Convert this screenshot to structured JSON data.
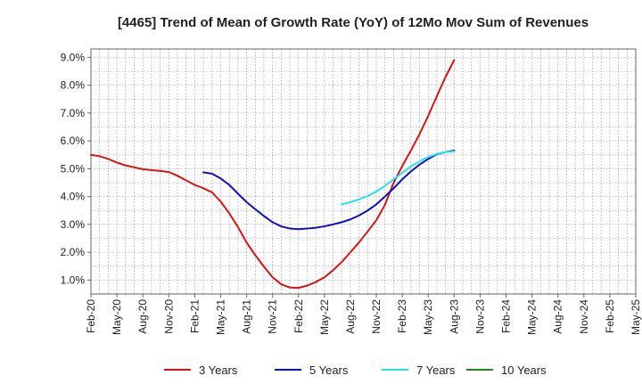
{
  "chart_data": {
    "type": "line",
    "title": "[4465]  Trend of Mean of Growth Rate (YoY) of 12Mo Mov Sum of Revenues",
    "xlabel": "",
    "ylabel": "",
    "x_labels": [
      "Feb-20",
      "May-20",
      "Aug-20",
      "Nov-20",
      "Feb-21",
      "May-21",
      "Aug-21",
      "Nov-21",
      "Feb-22",
      "May-22",
      "Aug-22",
      "Nov-22",
      "Feb-23",
      "May-23",
      "Aug-23",
      "Nov-23",
      "Feb-24",
      "May-24",
      "Aug-24",
      "Nov-24",
      "Feb-25",
      "May-25"
    ],
    "y_ticks": [
      "1.0%",
      "2.0%",
      "3.0%",
      "4.0%",
      "5.0%",
      "6.0%",
      "7.0%",
      "8.0%",
      "9.0%"
    ],
    "ylim": [
      0.5,
      9.3
    ],
    "series": [
      {
        "name": "3 Years",
        "color": "#dd1111",
        "points": [
          [
            0,
            5.5
          ],
          [
            0.33,
            5.45
          ],
          [
            0.67,
            5.35
          ],
          [
            1,
            5.22
          ],
          [
            1.33,
            5.12
          ],
          [
            1.67,
            5.05
          ],
          [
            2,
            4.98
          ],
          [
            2.33,
            4.95
          ],
          [
            2.67,
            4.92
          ],
          [
            3,
            4.88
          ],
          [
            3.33,
            4.75
          ],
          [
            3.67,
            4.58
          ],
          [
            4,
            4.42
          ],
          [
            4.33,
            4.3
          ],
          [
            4.67,
            4.15
          ],
          [
            5,
            3.82
          ],
          [
            5.33,
            3.4
          ],
          [
            5.67,
            2.9
          ],
          [
            6,
            2.35
          ],
          [
            6.33,
            1.9
          ],
          [
            6.67,
            1.48
          ],
          [
            7,
            1.1
          ],
          [
            7.33,
            0.85
          ],
          [
            7.67,
            0.73
          ],
          [
            8,
            0.72
          ],
          [
            8.33,
            0.8
          ],
          [
            8.67,
            0.93
          ],
          [
            9,
            1.1
          ],
          [
            9.33,
            1.35
          ],
          [
            9.67,
            1.65
          ],
          [
            10,
            2.0
          ],
          [
            10.33,
            2.35
          ],
          [
            10.67,
            2.75
          ],
          [
            11,
            3.15
          ],
          [
            11.33,
            3.7
          ],
          [
            11.67,
            4.5
          ],
          [
            12,
            5.1
          ],
          [
            12.33,
            5.65
          ],
          [
            12.67,
            6.25
          ],
          [
            13,
            6.9
          ],
          [
            13.33,
            7.6
          ],
          [
            13.67,
            8.3
          ],
          [
            14,
            8.9
          ]
        ]
      },
      {
        "name": "5 Years",
        "color": "#1111bb",
        "points": [
          [
            4.33,
            4.87
          ],
          [
            4.67,
            4.82
          ],
          [
            5,
            4.65
          ],
          [
            5.33,
            4.42
          ],
          [
            5.67,
            4.1
          ],
          [
            6,
            3.8
          ],
          [
            6.33,
            3.55
          ],
          [
            6.67,
            3.3
          ],
          [
            7,
            3.08
          ],
          [
            7.33,
            2.93
          ],
          [
            7.67,
            2.85
          ],
          [
            8,
            2.83
          ],
          [
            8.33,
            2.85
          ],
          [
            8.67,
            2.88
          ],
          [
            9,
            2.93
          ],
          [
            9.33,
            3.0
          ],
          [
            9.67,
            3.08
          ],
          [
            10,
            3.18
          ],
          [
            10.33,
            3.32
          ],
          [
            10.67,
            3.5
          ],
          [
            11,
            3.72
          ],
          [
            11.33,
            4.0
          ],
          [
            11.67,
            4.3
          ],
          [
            12,
            4.62
          ],
          [
            12.33,
            4.9
          ],
          [
            12.67,
            5.15
          ],
          [
            13,
            5.35
          ],
          [
            13.33,
            5.52
          ],
          [
            13.67,
            5.6
          ],
          [
            14,
            5.65
          ]
        ]
      },
      {
        "name": "7 Years",
        "color": "#22e5ee",
        "points": [
          [
            9.67,
            3.72
          ],
          [
            10,
            3.8
          ],
          [
            10.33,
            3.9
          ],
          [
            10.67,
            4.02
          ],
          [
            11,
            4.18
          ],
          [
            11.33,
            4.38
          ],
          [
            11.67,
            4.62
          ],
          [
            12,
            4.85
          ],
          [
            12.33,
            5.08
          ],
          [
            12.67,
            5.27
          ],
          [
            13,
            5.42
          ],
          [
            13.33,
            5.53
          ],
          [
            13.67,
            5.6
          ],
          [
            14,
            5.62
          ]
        ]
      },
      {
        "name": "10 Years",
        "color": "#228822",
        "points": []
      }
    ]
  }
}
